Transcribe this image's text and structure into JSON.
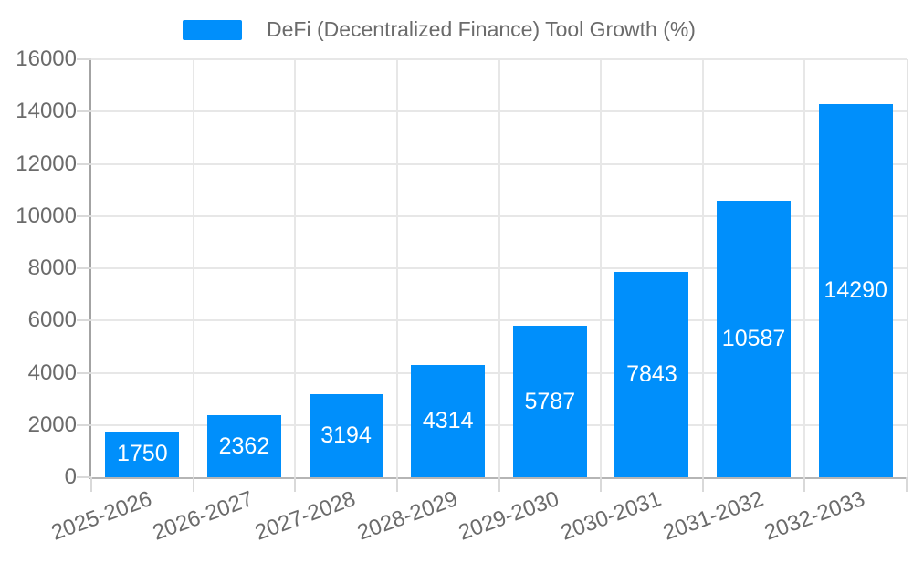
{
  "legend": {
    "items": [
      {
        "label": "DeFi (Decentralized Finance) Tool Growth (%)",
        "color": "#008FFB"
      }
    ],
    "position": "top"
  },
  "chart_data": {
    "type": "bar",
    "title": "",
    "categories": [
      "2025-2026",
      "2026-2027",
      "2027-2028",
      "2028-2029",
      "2029-2030",
      "2030-2031",
      "2031-2032",
      "2032-2033"
    ],
    "series": [
      {
        "name": "DeFi (Decentralized Finance) Tool Growth (%)",
        "color": "#008FFB",
        "values": [
          1750,
          2362,
          3194,
          4314,
          5787,
          7843,
          10587,
          14290
        ]
      }
    ],
    "data_labels": {
      "show": true,
      "position": "middle",
      "color": "#ffffff"
    },
    "xlabel": "",
    "ylabel": "",
    "ylim": [
      0,
      16000
    ],
    "yticks": [
      0,
      2000,
      4000,
      6000,
      8000,
      10000,
      12000,
      14000,
      16000
    ],
    "grid": "both",
    "legend_position": "top",
    "x_label_rotation": -20
  },
  "colors": {
    "bar": "#008FFB",
    "axis_text": "#6b6b6b",
    "gridline": "#e7e7e7",
    "axis_line_y": "#a3a3a3",
    "axis_line_x": "#b5b5b5",
    "plot_border_right": "#e3e3e3",
    "tick": "#d9d9d9",
    "value_label": "#ffffff",
    "background": "#ffffff"
  }
}
